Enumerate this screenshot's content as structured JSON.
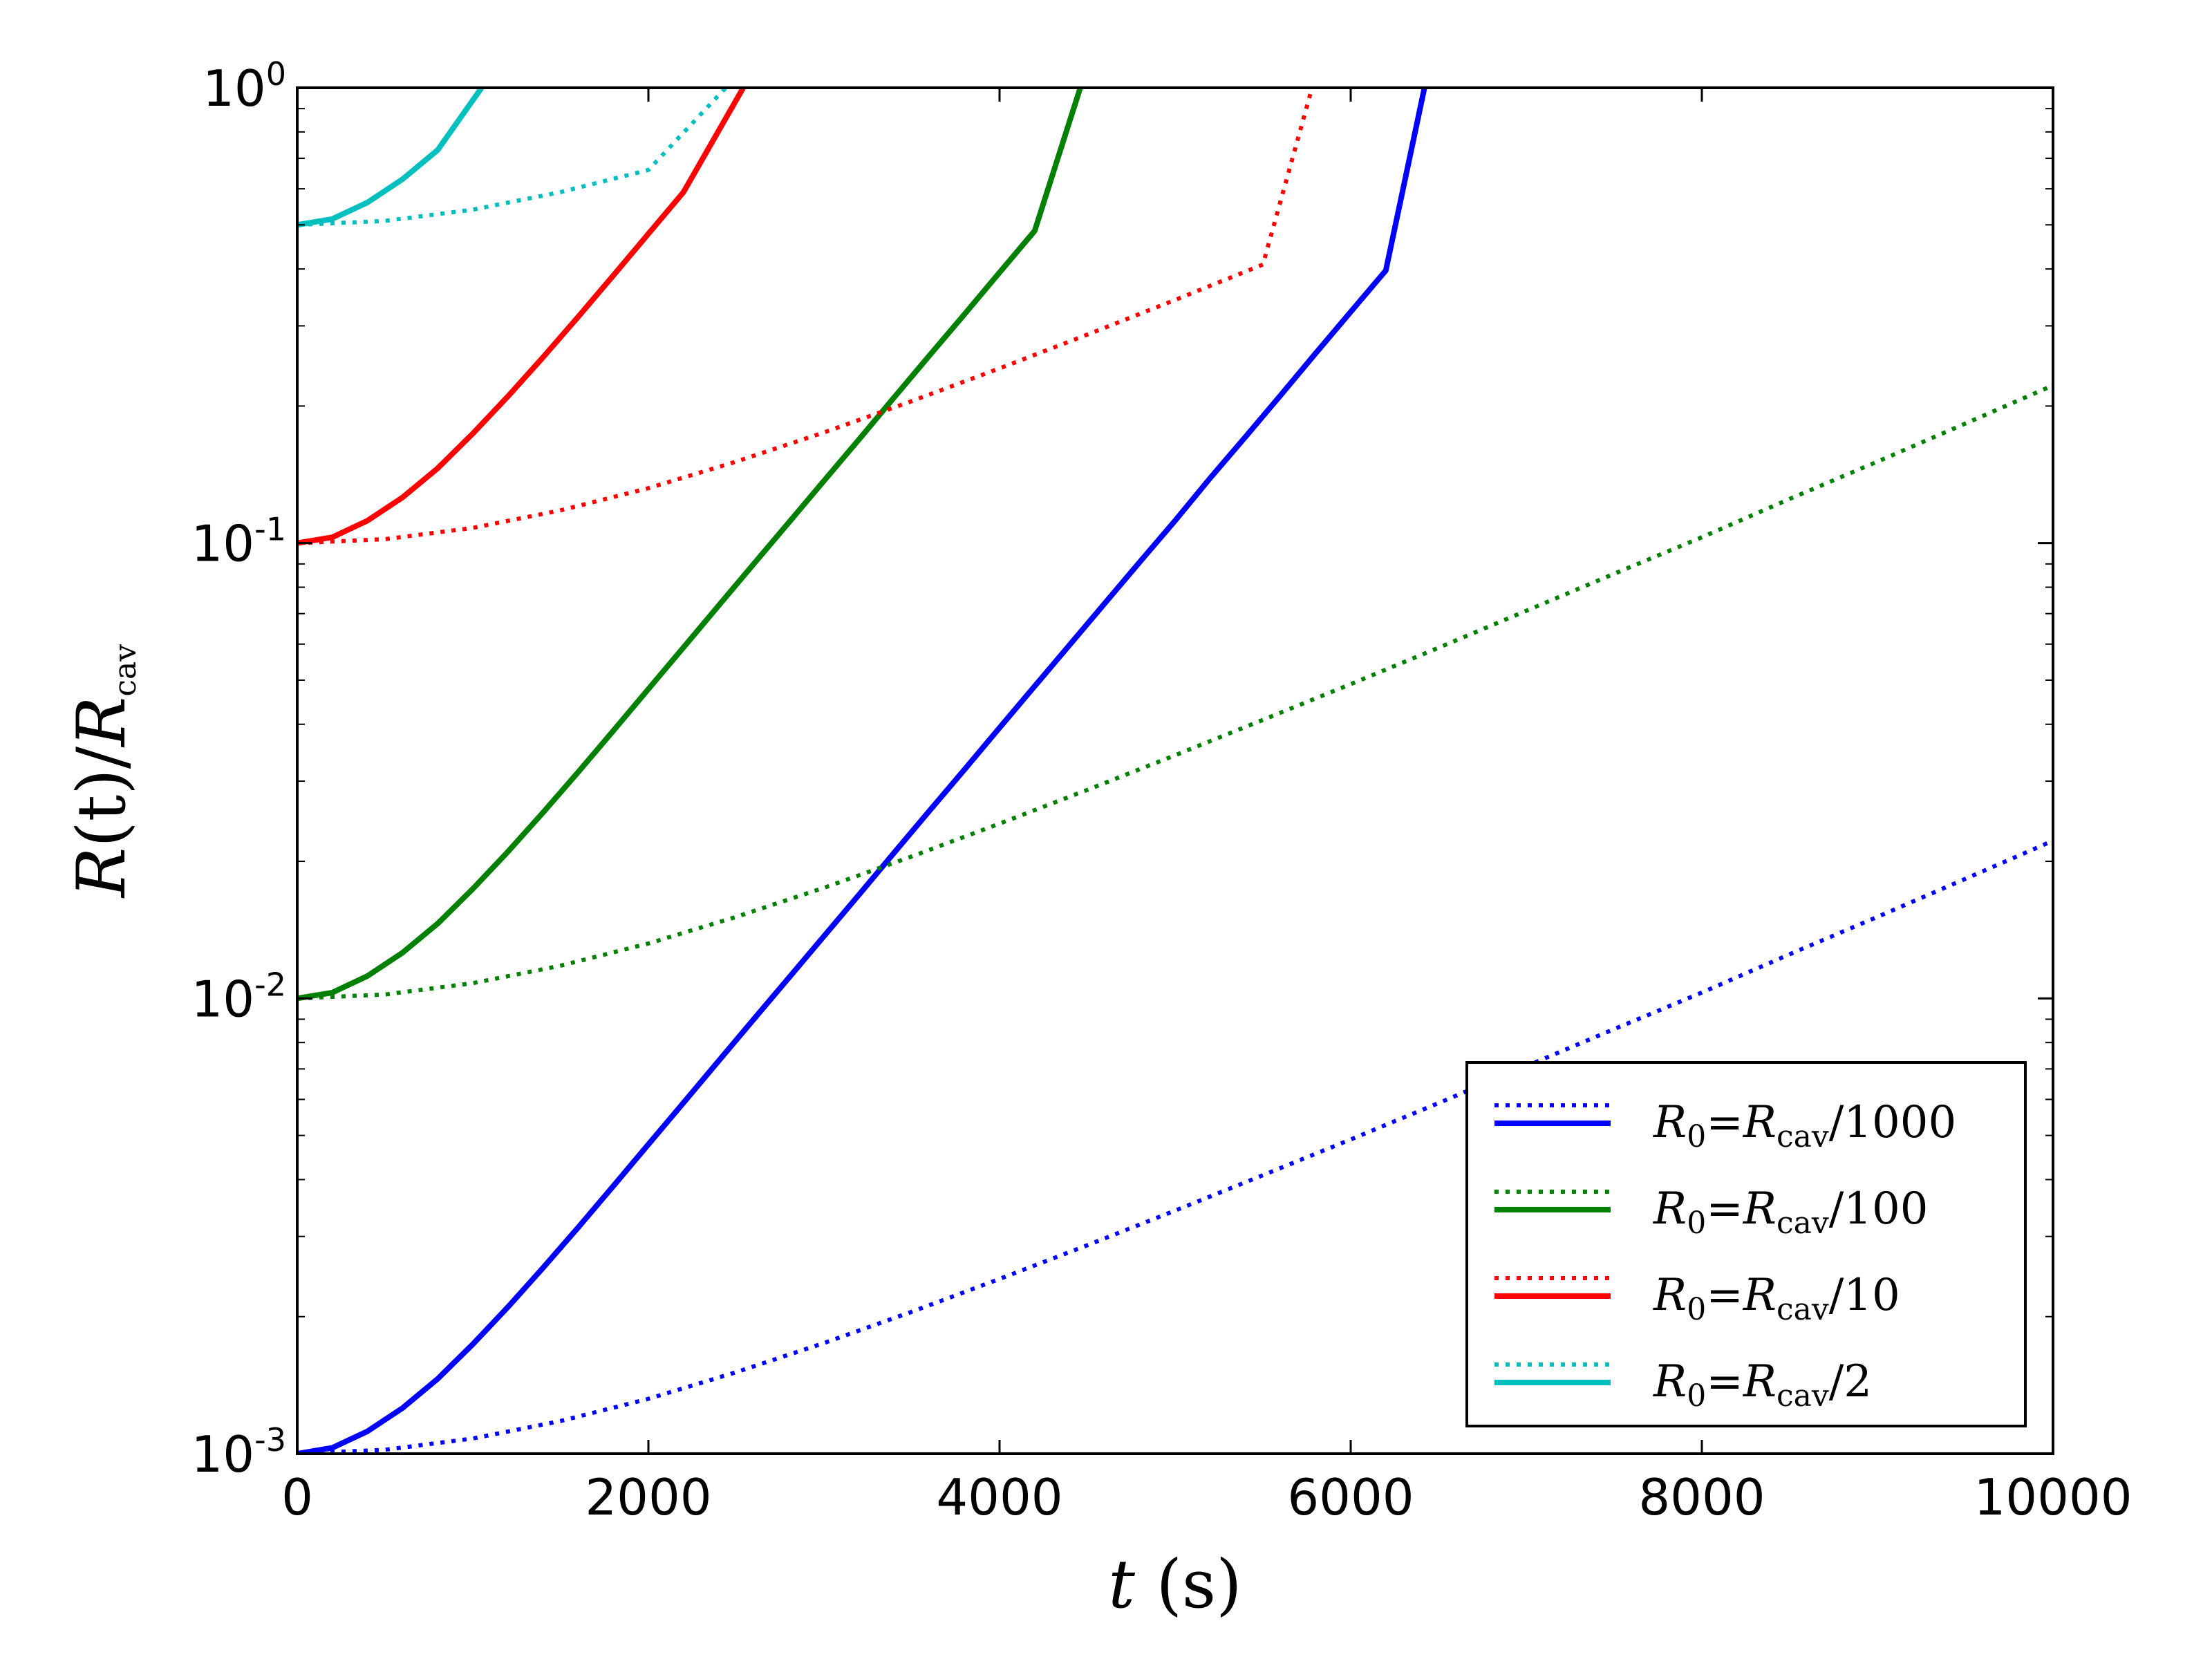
{
  "chart_data": {
    "type": "line",
    "xlabel": {
      "italic": "t",
      "rest": " (s)"
    },
    "ylabel": {
      "italic": "R",
      "mid": "(t)/",
      "italic2": "R",
      "sub": "cav"
    },
    "xlim": [
      0,
      10000
    ],
    "ylim": [
      0.001,
      1
    ],
    "yscale": "log",
    "grid": false,
    "legend_position": "lower-right",
    "x_ticks": [
      {
        "value": 0,
        "label": "0"
      },
      {
        "value": 2000,
        "label": "2000"
      },
      {
        "value": 4000,
        "label": "4000"
      },
      {
        "value": 6000,
        "label": "6000"
      },
      {
        "value": 8000,
        "label": "8000"
      },
      {
        "value": 10000,
        "label": "10000"
      }
    ],
    "y_ticks": [
      {
        "value": 0.001,
        "base": "10",
        "exp": "-3"
      },
      {
        "value": 0.01,
        "base": "10",
        "exp": "-2"
      },
      {
        "value": 0.1,
        "base": "10",
        "exp": "-1"
      },
      {
        "value": 1,
        "base": "10",
        "exp": "0"
      }
    ],
    "series": [
      {
        "legend": {
          "lhs": "R",
          "lhs_sub": "0",
          "eq": "=",
          "rhs": "R",
          "rhs_sub": "cav",
          "tail": "/1000"
        },
        "color": "#0000ff",
        "solid": {
          "x": [
            0,
            200,
            400,
            600,
            800,
            1000,
            1200,
            1400,
            1600,
            1800,
            2000,
            2200,
            2400,
            2600,
            2800,
            3000,
            3200,
            3400,
            3600,
            3800,
            4000,
            4200,
            4400,
            4600,
            4800,
            5000,
            5200,
            5400,
            5600,
            5800,
            6000,
            6200,
            6420
          ],
          "y": [
            0.001,
            0.00103,
            0.00112,
            0.00126,
            0.00146,
            0.00174,
            0.0021,
            0.00256,
            0.00314,
            0.00387,
            0.00478,
            0.0059,
            0.00729,
            0.009,
            0.0111,
            0.0137,
            0.0169,
            0.0209,
            0.0258,
            0.0318,
            0.0393,
            0.0485,
            0.0598,
            0.0738,
            0.091,
            0.112,
            0.139,
            0.171,
            0.211,
            0.261,
            0.322,
            0.397,
            1.0
          ]
        },
        "dotted": {
          "x": [
            0,
            500,
            1000,
            1500,
            2000,
            2500,
            3000,
            3500,
            4000,
            4500,
            5000,
            5500,
            6000,
            6500,
            7000,
            7500,
            8000,
            8500,
            9000,
            9500,
            10000
          ],
          "y": [
            0.001,
            0.00102,
            0.00108,
            0.00118,
            0.00132,
            0.00151,
            0.00175,
            0.00205,
            0.00242,
            0.00287,
            0.00342,
            0.00409,
            0.0049,
            0.00589,
            0.0071,
            0.00856,
            0.0103,
            0.0125,
            0.0151,
            0.0183,
            0.0222
          ]
        }
      },
      {
        "legend": {
          "lhs": "R",
          "lhs_sub": "0",
          "eq": "=",
          "rhs": "R",
          "rhs_sub": "cav",
          "tail": "/100"
        },
        "color": "#008000",
        "solid": {
          "x": [
            0,
            200,
            400,
            600,
            800,
            1000,
            1200,
            1400,
            1600,
            1800,
            2000,
            2200,
            2400,
            2600,
            2800,
            3000,
            3200,
            3400,
            3600,
            3800,
            4000,
            4200,
            4460
          ],
          "y": [
            0.01,
            0.0103,
            0.0112,
            0.0126,
            0.0146,
            0.0174,
            0.021,
            0.0256,
            0.0314,
            0.0387,
            0.0478,
            0.059,
            0.0729,
            0.09,
            0.111,
            0.137,
            0.169,
            0.209,
            0.258,
            0.318,
            0.393,
            0.485,
            1.0
          ]
        },
        "dotted": {
          "x": [
            0,
            500,
            1000,
            1500,
            2000,
            2500,
            3000,
            3500,
            4000,
            4500,
            5000,
            5500,
            6000,
            6500,
            7000,
            7500,
            8000,
            8500,
            9000,
            9500,
            10000
          ],
          "y": [
            0.01,
            0.0102,
            0.0108,
            0.0118,
            0.0132,
            0.0151,
            0.0175,
            0.0205,
            0.0242,
            0.0287,
            0.0342,
            0.0409,
            0.049,
            0.0589,
            0.071,
            0.0856,
            0.103,
            0.125,
            0.151,
            0.183,
            0.222
          ]
        }
      },
      {
        "legend": {
          "lhs": "R",
          "lhs_sub": "0",
          "eq": "=",
          "rhs": "R",
          "rhs_sub": "cav",
          "tail": "/10"
        },
        "color": "#ff0000",
        "solid": {
          "x": [
            0,
            200,
            400,
            600,
            800,
            1000,
            1200,
            1400,
            1600,
            1800,
            2000,
            2200,
            2540
          ],
          "y": [
            0.1,
            0.103,
            0.112,
            0.126,
            0.146,
            0.174,
            0.21,
            0.256,
            0.314,
            0.387,
            0.478,
            0.59,
            1.0
          ]
        },
        "dotted": {
          "x": [
            0,
            500,
            1000,
            1500,
            2000,
            2500,
            3000,
            3500,
            4000,
            4500,
            5000,
            5500,
            5780
          ],
          "y": [
            0.1,
            0.102,
            0.108,
            0.118,
            0.132,
            0.151,
            0.175,
            0.205,
            0.242,
            0.287,
            0.342,
            0.409,
            1.0
          ]
        }
      },
      {
        "legend": {
          "lhs": "R",
          "lhs_sub": "0",
          "eq": "=",
          "rhs": "R",
          "rhs_sub": "cav",
          "tail": "/2"
        },
        "color": "#00bfbf",
        "solid": {
          "x": [
            0,
            200,
            400,
            600,
            800,
            1050
          ],
          "y": [
            0.5,
            0.515,
            0.56,
            0.63,
            0.73,
            1.0
          ]
        },
        "dotted": {
          "x": [
            0,
            500,
            1000,
            1500,
            2000,
            2440
          ],
          "y": [
            0.5,
            0.51,
            0.54,
            0.59,
            0.66,
            1.0
          ]
        }
      }
    ]
  }
}
